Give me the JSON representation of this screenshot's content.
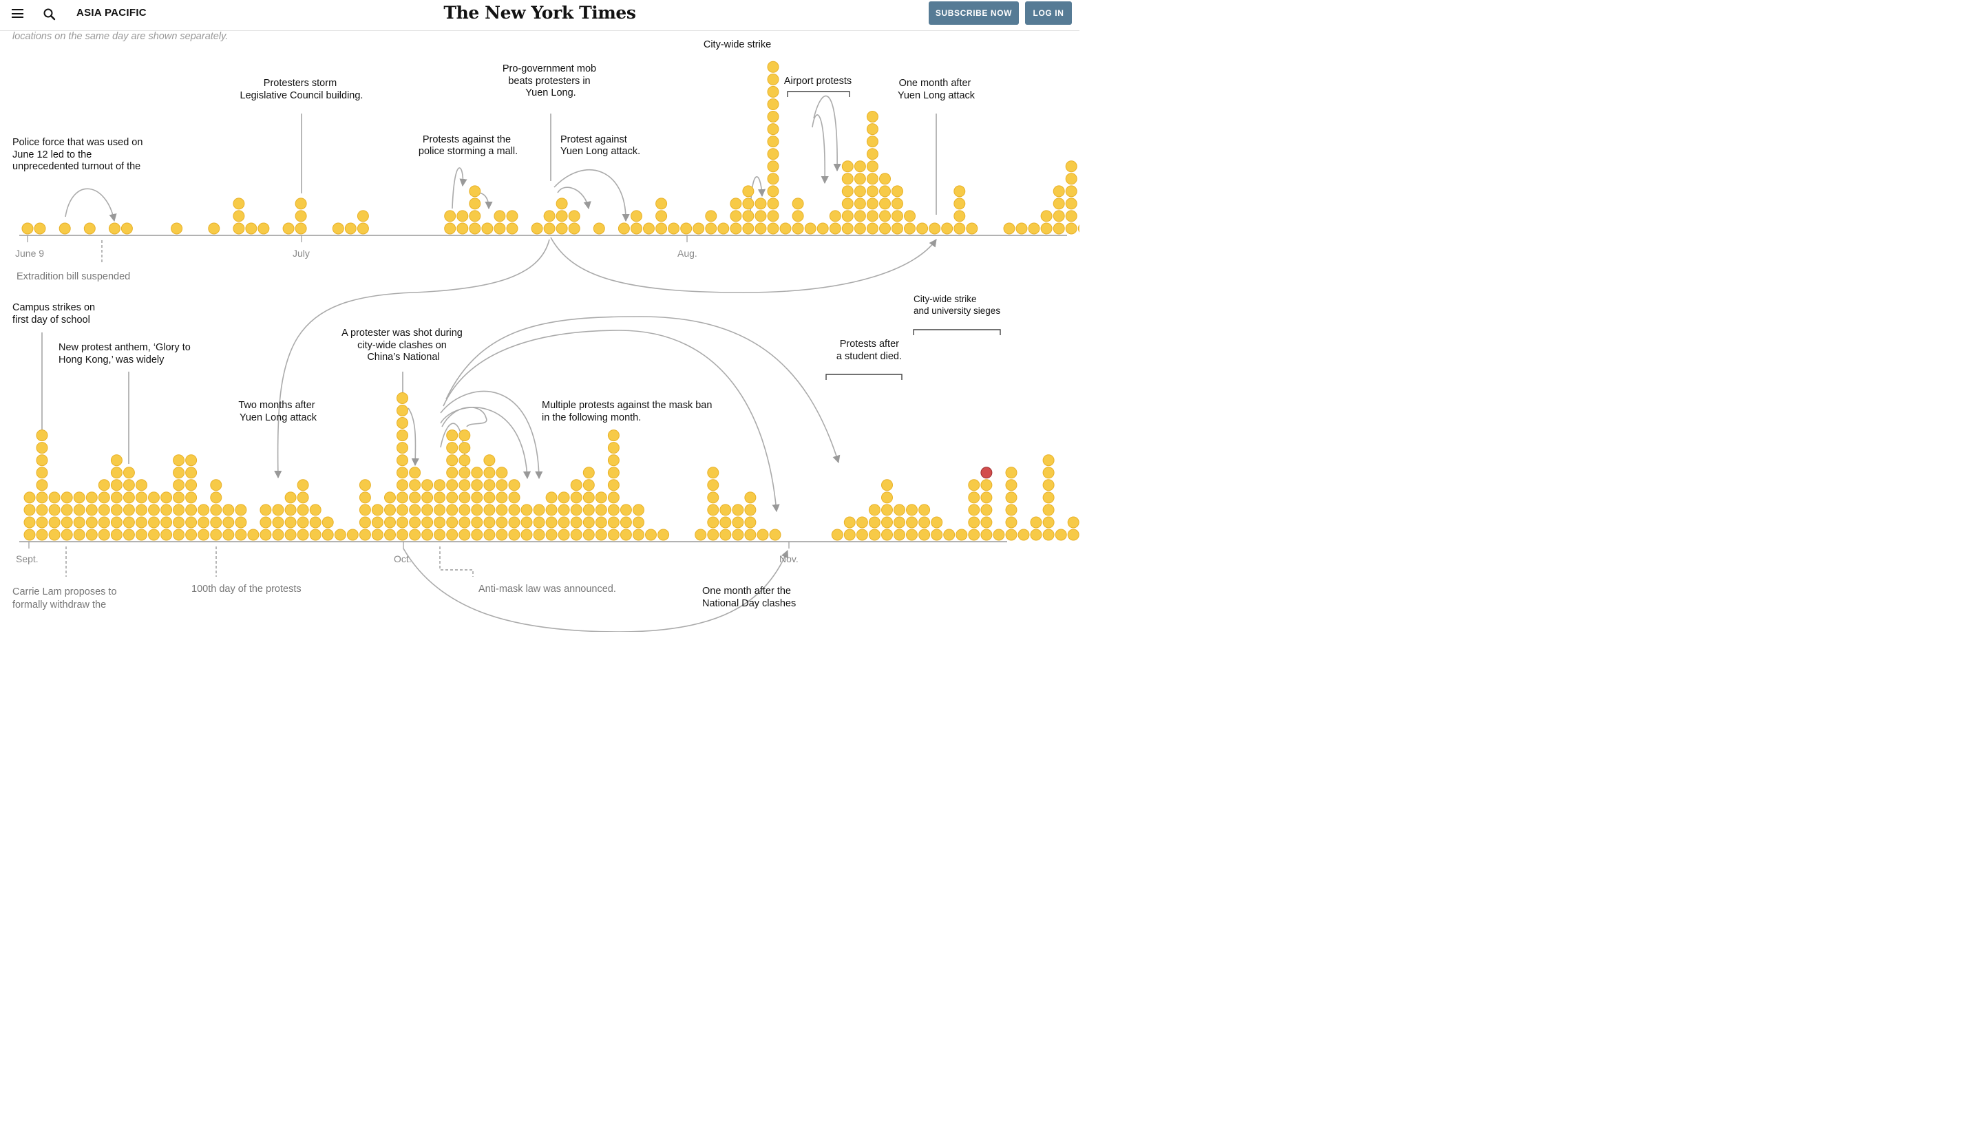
{
  "header": {
    "section_label": "ASIA PACIFIC",
    "logo": "The New York Times",
    "subscribe_label": "SUBSCRIBE NOW",
    "login_label": "LOG IN",
    "menu_icon": "hamburger-menu-icon",
    "search_icon": "search-icon"
  },
  "intro_text": "locations on the same day are shown separately.",
  "colors": {
    "dot": "#f7ca47",
    "dot_stroke": "#e8b128",
    "highlight": "#d24d4d",
    "highlight_stroke": "#9e3030",
    "axis": "#999999",
    "guide": "#aaaaaa"
  },
  "chart_data": [
    {
      "type": "dot-column timeline",
      "title": "",
      "ticks": [
        "June 9",
        "July",
        "Aug."
      ],
      "note_gray": "Extradition bill suspended",
      "annotations": [
        "Police force that was used on June 12 led to the unprecedented turnout of the June 16 march.",
        "Protesters storm Legislative Council building.",
        "Protests against the police storming a mall.",
        "Pro-government mob beats protesters in Yuen Long.",
        "Protest against Yuen Long attack.",
        "City-wide strike",
        "Airport protests",
        "One month after Yuen Long attack"
      ],
      "counts": [
        1,
        1,
        0,
        1,
        0,
        1,
        0,
        1,
        1,
        0,
        0,
        0,
        1,
        0,
        0,
        1,
        0,
        3,
        1,
        1,
        0,
        1,
        3,
        0,
        0,
        1,
        1,
        2,
        0,
        0,
        0,
        0,
        0,
        0,
        2,
        2,
        4,
        1,
        2,
        2,
        0,
        1,
        2,
        3,
        2,
        0,
        1,
        0,
        1,
        2,
        1,
        3,
        1,
        1,
        1,
        2,
        1,
        3,
        4,
        3,
        14,
        1,
        3,
        1,
        1,
        2,
        6,
        6,
        10,
        5,
        4,
        2,
        1,
        1,
        1,
        4,
        1,
        0,
        0,
        1,
        1,
        1,
        2,
        4,
        6,
        1,
        1,
        2,
        1,
        2,
        10
      ],
      "highlights": [
        {
          "day": 40,
          "level": 1
        },
        {
          "day": 41,
          "level": 2
        },
        {
          "day": 42,
          "level": 4
        },
        {
          "day": 56,
          "level": 5
        },
        {
          "day": 58,
          "level": 15
        },
        {
          "day": 77,
          "level": 6
        }
      ]
    },
    {
      "type": "dot-column timeline",
      "title": "",
      "ticks": [
        "Sept.",
        "Oct.",
        "Nov."
      ],
      "notes_gray": [
        "Carrie Lam proposes to formally withdraw the bill.",
        "100th day of the protests",
        "Anti-mask law was announced."
      ],
      "annotations": [
        "Campus strikes on first day of school",
        "New protest anthem, ‘Glory to Hong Kong,’ was widely adopted.",
        "Two months after Yuen Long attack",
        "A protester was shot during city-wide clashes on China’s National Day.",
        "Multiple protests against the mask ban in the following month.",
        "One month after the National Day clashes",
        "Protests after a student died.",
        "City-wide strike and university sieges"
      ],
      "counts": [
        4,
        9,
        4,
        4,
        4,
        4,
        5,
        7,
        6,
        5,
        4,
        4,
        7,
        7,
        3,
        5,
        3,
        3,
        1,
        3,
        3,
        4,
        5,
        3,
        2,
        1,
        1,
        5,
        3,
        4,
        12,
        6,
        5,
        5,
        9,
        9,
        6,
        7,
        6,
        5,
        3,
        3,
        4,
        4,
        5,
        6,
        4,
        9,
        3,
        3,
        1,
        1,
        0,
        0,
        1,
        6,
        3,
        3,
        4,
        1,
        1,
        0,
        0,
        0,
        0,
        1,
        2,
        2,
        3,
        5,
        3,
        3,
        3,
        2,
        1,
        1,
        5,
        6,
        1,
        6,
        1,
        2,
        7,
        1,
        2,
        9,
        18,
        16,
        12,
        12,
        12,
        6,
        6,
        5,
        6,
        3
      ]
    }
  ]
}
